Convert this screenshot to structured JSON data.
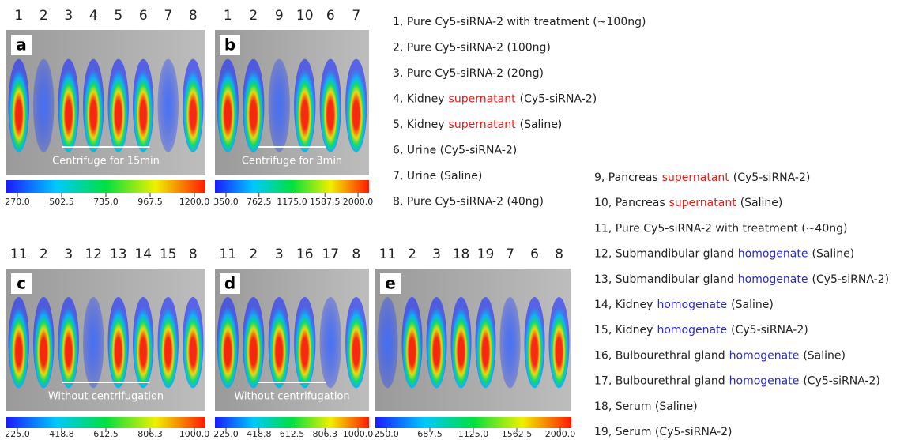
{
  "panels": [
    {
      "letter": "a",
      "lanes": [
        "1",
        "2",
        "3",
        "4",
        "5",
        "6",
        "7",
        "8"
      ],
      "caption": "Centrifuge for 15min",
      "colorbar": [
        "270.0",
        "502.5",
        "735.0",
        "967.5",
        "1200.0"
      ]
    },
    {
      "letter": "b",
      "lanes": [
        "1",
        "2",
        "9",
        "10",
        "6",
        "7"
      ],
      "caption": "Centrifuge for 3min",
      "colorbar": [
        "350.0",
        "762.5",
        "1175.0",
        "1587.5",
        "2000.0"
      ]
    },
    {
      "letter": "c",
      "lanes": [
        "11",
        "2",
        "3",
        "12",
        "13",
        "14",
        "15",
        "8"
      ],
      "caption": "Without centrifugation",
      "colorbar": [
        "225.0",
        "418.8",
        "612.5",
        "806.3",
        "1000.0"
      ]
    },
    {
      "letter": "d",
      "lanes": [
        "11",
        "2",
        "3",
        "16",
        "17",
        "8"
      ],
      "caption": "Without centrifugation",
      "colorbar": [
        "225.0",
        "418.8",
        "612.5",
        "806.3",
        "1000.0"
      ]
    },
    {
      "letter": "e",
      "lanes": [
        "11",
        "2",
        "3",
        "18",
        "19",
        "7",
        "6",
        "8"
      ],
      "colorbar": [
        "250.0",
        "687.5",
        "1125.0",
        "1562.5",
        "2000.0"
      ]
    }
  ],
  "legend": [
    {
      "text": "1, Pure Cy5-siRNA-2 with treatment (~100ng)"
    },
    {
      "text": "2, Pure Cy5-siRNA-2 (100ng)"
    },
    {
      "text": "3, Pure Cy5-siRNA-2 (20ng)"
    },
    {
      "text": "4, Kidney",
      "keyword": "supernatant",
      "rest": "(Cy5-siRNA-2)",
      "keyword_color": "#e0201a"
    },
    {
      "text": "5, Kidney",
      "keyword": "supernatant",
      "rest": "(Saline)",
      "keyword_color": "#e0201a"
    },
    {
      "text": "6, Urine (Cy5-siRNA-2)"
    },
    {
      "text": "7, Urine (Saline)"
    },
    {
      "text": "8, Pure Cy5-siRNA-2 (40ng)"
    },
    {
      "text": "9, Pancreas",
      "keyword": "supernatant",
      "rest": "(Cy5-siRNA-2)",
      "keyword_color": "#e0201a"
    },
    {
      "text": "10, Pancreas",
      "keyword": "supernatant",
      "rest": "(Saline)",
      "keyword_color": "#e0201a"
    },
    {
      "text": "11, Pure Cy5-siRNA-2 with treatment (~40ng)"
    },
    {
      "text": "12, Submandibular gland",
      "keyword": "homogenate",
      "rest": "(Saline)",
      "keyword_color": "#2a2ac8"
    },
    {
      "text": "13, Submandibular gland",
      "keyword": "homogenate",
      "rest": "(Cy5-siRNA-2)",
      "keyword_color": "#2a2ac8"
    },
    {
      "text": "14, Kidney",
      "keyword": "homogenate",
      "rest": "(Saline)",
      "keyword_color": "#2a2ac8"
    },
    {
      "text": "15, Kidney",
      "keyword": "homogenate",
      "rest": "(Cy5-siRNA-2)",
      "keyword_color": "#2a2ac8"
    },
    {
      "text": "16, Bulbourethral gland",
      "keyword": "homogenate",
      "rest": "(Saline)",
      "keyword_color": "#2a2ac8"
    },
    {
      "text": "17, Bulbourethral gland",
      "keyword": "homogenate",
      "rest": "(Cy5-siRNA-2)",
      "keyword_color": "#2a2ac8"
    },
    {
      "text": "18, Serum (Saline)"
    },
    {
      "text": "19, Serum (Cy5-siRNA-2)"
    }
  ]
}
